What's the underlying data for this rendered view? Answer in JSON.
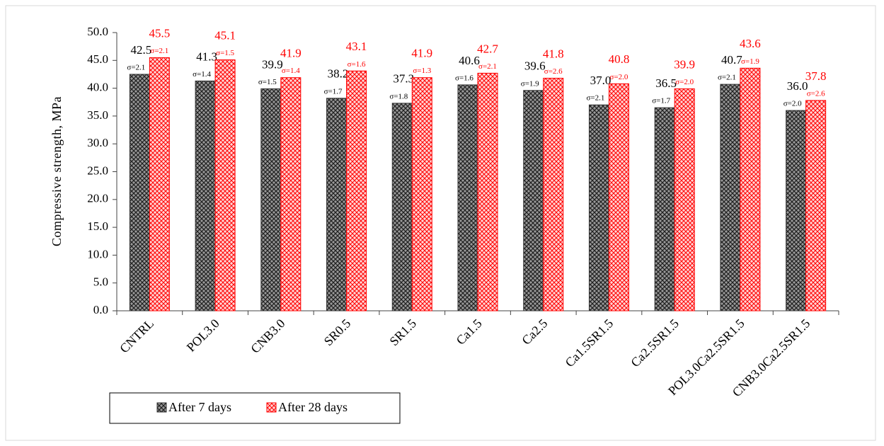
{
  "chart_data": {
    "type": "bar",
    "y_label": "Compressive strength, MPa",
    "categories": [
      "CNTRL",
      "POL3.0",
      "CNB3.0",
      "SR0.5",
      "SR1.5",
      "Ca1.5",
      "Ca2.5",
      "Ca1.5SR1.5",
      "Ca2.5SR1.5",
      "POL3.0Ca2.5SR1.5",
      "CNB3.0Ca2.5SR1.5"
    ],
    "series": [
      {
        "name": "After 7 days",
        "color": "#333333",
        "values": [
          42.5,
          41.3,
          39.9,
          38.2,
          37.3,
          40.6,
          39.6,
          37.0,
          36.5,
          40.7,
          36.0
        ],
        "value_labels": [
          "42.5",
          "41.3",
          "39.9",
          "38.2",
          "37.3",
          "40.6",
          "39.6",
          "37.0",
          "36.5",
          "40.7",
          "36.0"
        ],
        "sigma_labels": [
          "σ=2.1",
          "σ=1.4",
          "σ=1.5",
          "σ=1.7",
          "σ=1.8",
          "σ=1.6",
          "σ=1.9",
          "σ=2.1",
          "σ=1.7",
          "σ=2.1",
          "σ=2.0"
        ]
      },
      {
        "name": "After 28 days",
        "color": "#ff0000",
        "values": [
          45.5,
          45.1,
          41.9,
          43.1,
          41.9,
          42.7,
          41.8,
          40.8,
          39.9,
          43.6,
          37.8
        ],
        "value_labels": [
          "45.5",
          "45.1",
          "41.9",
          "43.1",
          "41.9",
          "42.7",
          "41.8",
          "40.8",
          "39.9",
          "43.6",
          "37.8"
        ],
        "sigma_labels": [
          "σ=2.1",
          "σ=1.5",
          "σ=1.4",
          "σ=1.6",
          "σ=1.3",
          "σ=2.1",
          "σ=2.6",
          "σ=2.0",
          "σ=2.0",
          "σ=1.9",
          "σ=2.6"
        ]
      }
    ],
    "ylim": [
      0,
      50
    ],
    "yticks": [
      {
        "value": 0,
        "label": "0.0"
      },
      {
        "value": 5,
        "label": "5.0"
      },
      {
        "value": 10,
        "label": "10.0"
      },
      {
        "value": 15,
        "label": "15.0"
      },
      {
        "value": 20,
        "label": "20.0"
      },
      {
        "value": 25,
        "label": "25.0"
      },
      {
        "value": 30,
        "label": "30.0"
      },
      {
        "value": 35,
        "label": "35.0"
      },
      {
        "value": 40,
        "label": "40.0"
      },
      {
        "value": 45,
        "label": "45.0"
      },
      {
        "value": 50,
        "label": "50.0"
      }
    ],
    "legend": "bottom-left"
  }
}
